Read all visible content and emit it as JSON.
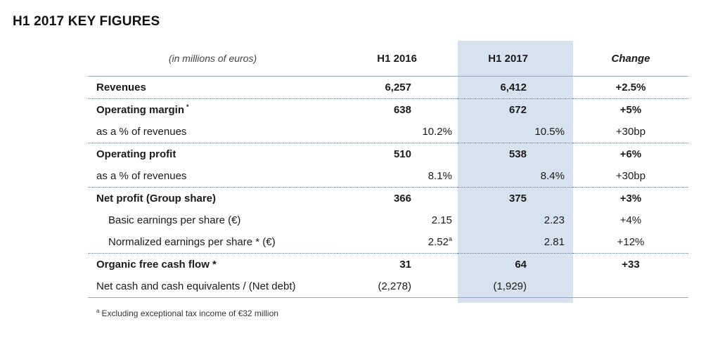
{
  "page_title": "H1 2017 KEY FIGURES",
  "table": {
    "header": {
      "unit": "(in millions of euros)",
      "h1_2016": "H1 2016",
      "h1_2017": "H1 2017",
      "change": "Change"
    },
    "rows": [
      {
        "label": "Revenues",
        "h1_2016": "6,257",
        "h1_2017": "6,412",
        "change": "+2.5%"
      },
      {
        "label": "Operating margin",
        "label_mark": "*",
        "h1_2016": "638",
        "h1_2017": "672",
        "change": "+5%"
      },
      {
        "label": "as a % of revenues",
        "h1_2016": "10.2%",
        "h1_2017": "10.5%",
        "change": "+30bp"
      },
      {
        "label": "Operating profit",
        "h1_2016": "510",
        "h1_2017": "538",
        "change": "+6%"
      },
      {
        "label": "as a % of revenues",
        "h1_2016": "8.1%",
        "h1_2017": "8.4%",
        "change": "+30bp"
      },
      {
        "label": "Net profit (Group share)",
        "h1_2016": "366",
        "h1_2017": "375",
        "change": "+3%"
      },
      {
        "label": "Basic earnings per share (€)",
        "h1_2016": "2.15",
        "h1_2017": "2.23",
        "change": "+4%"
      },
      {
        "label": "Normalized earnings per share * (€)",
        "h1_2016": "2.52",
        "h1_2016_sup": "a",
        "h1_2017": "2.81",
        "change": "+12%"
      },
      {
        "label": "Organic free cash flow *",
        "h1_2016": "31",
        "h1_2017": "64",
        "change": "+33"
      },
      {
        "label": "Net cash and cash equivalents / (Net debt)",
        "h1_2016": "(2,278)",
        "h1_2017": "(1,929)",
        "change": ""
      }
    ]
  },
  "footnote": {
    "mark": "a",
    "text": "Excluding exceptional tax income of €32 million"
  },
  "colors": {
    "highlight_column": "#d6e2ee",
    "rule": "#8fa9c4",
    "dotted_rule": "#5a7fa5"
  }
}
